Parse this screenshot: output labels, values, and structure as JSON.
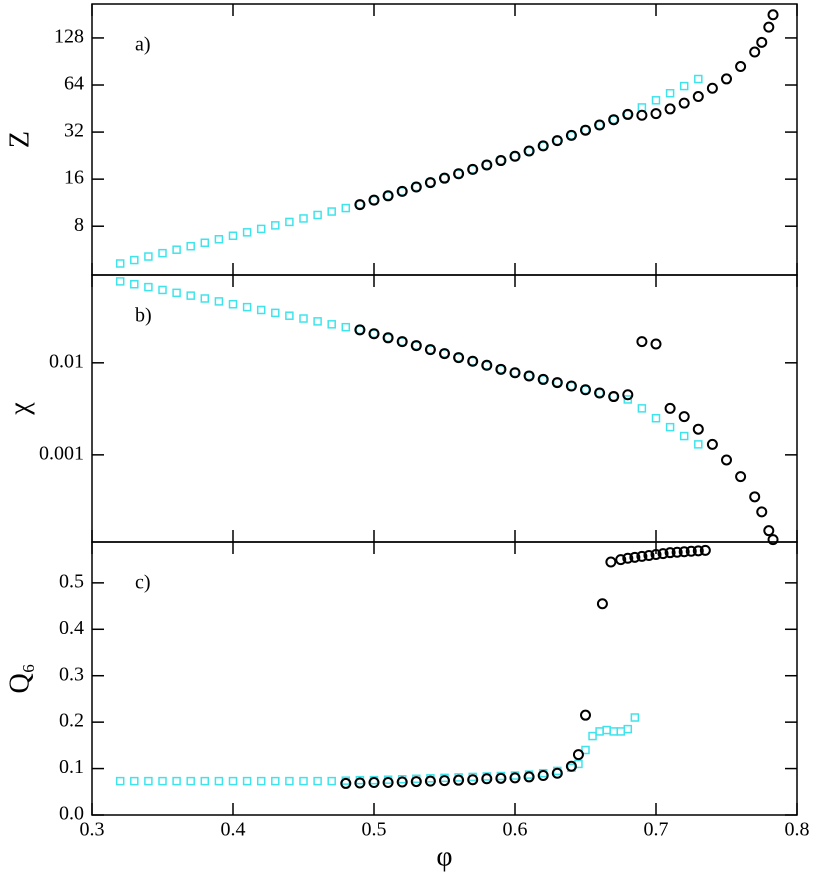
{
  "chart_data": [
    {
      "type": "scatter",
      "annotation": "a)",
      "y_label": "Z",
      "log_y": true,
      "xlim": [
        0.3,
        0.8
      ],
      "xticks": [
        0.3,
        0.4,
        0.5,
        0.6,
        0.7,
        0.8
      ],
      "ylim": [
        3.9,
        211
      ],
      "yticks": [
        8,
        16,
        32,
        64,
        128
      ],
      "series": [
        {
          "marker": "square",
          "color": "#3ee4ec",
          "x": [
            0.32,
            0.33,
            0.34,
            0.35,
            0.36,
            0.37,
            0.38,
            0.39,
            0.4,
            0.41,
            0.42,
            0.43,
            0.44,
            0.45,
            0.46,
            0.47,
            0.48,
            0.49,
            0.5,
            0.51,
            0.52,
            0.53,
            0.54,
            0.55,
            0.56,
            0.57,
            0.58,
            0.59,
            0.6,
            0.61,
            0.62,
            0.63,
            0.64,
            0.65,
            0.66,
            0.67,
            0.68,
            0.69,
            0.7,
            0.71,
            0.72,
            0.73
          ],
          "values": [
            4.62,
            4.86,
            5.12,
            5.38,
            5.66,
            5.96,
            6.27,
            6.6,
            6.95,
            7.31,
            7.69,
            8.1,
            8.52,
            8.97,
            9.44,
            9.93,
            10.45,
            11.0,
            11.74,
            12.52,
            13.36,
            14.26,
            15.21,
            16.23,
            17.32,
            18.48,
            19.72,
            21.04,
            22.4,
            24.2,
            26.1,
            28.2,
            30.5,
            32.9,
            35.5,
            38.4,
            41.5,
            46.0,
            51.1,
            56.7,
            63.0,
            69.9
          ]
        },
        {
          "marker": "circle",
          "color": "#000000",
          "x": [
            0.49,
            0.5,
            0.51,
            0.52,
            0.53,
            0.54,
            0.55,
            0.56,
            0.57,
            0.58,
            0.59,
            0.6,
            0.61,
            0.62,
            0.63,
            0.64,
            0.65,
            0.66,
            0.67,
            0.68,
            0.69,
            0.7,
            0.71,
            0.72,
            0.73,
            0.74,
            0.75,
            0.76,
            0.77,
            0.775,
            0.78,
            0.783
          ],
          "values": [
            11.0,
            11.74,
            12.52,
            13.36,
            14.26,
            15.21,
            16.23,
            17.32,
            18.48,
            19.72,
            21.04,
            22.4,
            24.2,
            26.1,
            28.2,
            30.5,
            32.9,
            35.5,
            38.4,
            41.5,
            41.0,
            42,
            45,
            49,
            54,
            61,
            70,
            84,
            104,
            120,
            150,
            180
          ]
        }
      ]
    },
    {
      "type": "scatter",
      "annotation": "b)",
      "y_label": "χ",
      "log_y": true,
      "xlim": [
        0.3,
        0.8
      ],
      "xticks": [
        0.3,
        0.4,
        0.5,
        0.6,
        0.7,
        0.8
      ],
      "ylim": [
        0.000113,
        0.09
      ],
      "yticks": [
        0.01,
        0.001
      ],
      "series": [
        {
          "marker": "square",
          "color": "#3ee4ec",
          "x": [
            0.32,
            0.33,
            0.34,
            0.35,
            0.36,
            0.37,
            0.38,
            0.39,
            0.4,
            0.41,
            0.42,
            0.43,
            0.44,
            0.45,
            0.46,
            0.47,
            0.48,
            0.49,
            0.5,
            0.51,
            0.52,
            0.53,
            0.54,
            0.55,
            0.56,
            0.57,
            0.58,
            0.59,
            0.6,
            0.61,
            0.62,
            0.63,
            0.64,
            0.65,
            0.66,
            0.67,
            0.68,
            0.69,
            0.7,
            0.71,
            0.72,
            0.73
          ],
          "values": [
            0.0767,
            0.0714,
            0.0665,
            0.0619,
            0.0576,
            0.0537,
            0.05,
            0.0465,
            0.0433,
            0.0403,
            0.0375,
            0.0349,
            0.0325,
            0.0303,
            0.0282,
            0.0262,
            0.0244,
            0.0228,
            0.0207,
            0.0187,
            0.017,
            0.0154,
            0.0139,
            0.0126,
            0.0114,
            0.0104,
            0.0094,
            0.0085,
            0.0078,
            0.0072,
            0.0066,
            0.0061,
            0.0056,
            0.0051,
            0.0047,
            0.0043,
            0.004,
            0.0032,
            0.0025,
            0.002,
            0.0016,
            0.0013
          ]
        },
        {
          "marker": "circle",
          "color": "#000000",
          "x": [
            0.49,
            0.5,
            0.51,
            0.52,
            0.53,
            0.54,
            0.55,
            0.56,
            0.57,
            0.58,
            0.59,
            0.6,
            0.61,
            0.62,
            0.63,
            0.64,
            0.65,
            0.66,
            0.67,
            0.68,
            0.69,
            0.7,
            0.71,
            0.72,
            0.73,
            0.74,
            0.75,
            0.76,
            0.77,
            0.775,
            0.78,
            0.783
          ],
          "values": [
            0.0228,
            0.0207,
            0.0187,
            0.017,
            0.0154,
            0.0139,
            0.0126,
            0.0114,
            0.0104,
            0.0094,
            0.0085,
            0.0078,
            0.0072,
            0.0066,
            0.0061,
            0.0056,
            0.0051,
            0.0047,
            0.0043,
            0.0045,
            0.017,
            0.016,
            0.0032,
            0.0026,
            0.0019,
            0.0013,
            0.00088,
            0.00058,
            0.00035,
            0.00024,
            0.00015,
            0.00012
          ]
        }
      ]
    },
    {
      "type": "scatter",
      "annotation": "c)",
      "y_label": "Q₆",
      "x_label": "φ",
      "log_y": false,
      "xlim": [
        0.3,
        0.8
      ],
      "xticks": [
        0.3,
        0.4,
        0.5,
        0.6,
        0.7,
        0.8
      ],
      "ylim": [
        0,
        0.588
      ],
      "yticks": [
        {
          "value": 0,
          "label": "0.0"
        },
        0.1,
        0.2,
        0.3,
        0.4,
        0.5
      ],
      "series": [
        {
          "marker": "square",
          "color": "#3ee4ec",
          "x": [
            0.32,
            0.33,
            0.34,
            0.35,
            0.36,
            0.37,
            0.38,
            0.39,
            0.4,
            0.41,
            0.42,
            0.43,
            0.44,
            0.45,
            0.46,
            0.47,
            0.48,
            0.49,
            0.5,
            0.51,
            0.52,
            0.53,
            0.54,
            0.55,
            0.56,
            0.57,
            0.58,
            0.59,
            0.6,
            0.61,
            0.62,
            0.63,
            0.64,
            0.645,
            0.65,
            0.655,
            0.66,
            0.665,
            0.67,
            0.675,
            0.68,
            0.685
          ],
          "values": [
            0.073,
            0.073,
            0.073,
            0.073,
            0.073,
            0.073,
            0.073,
            0.073,
            0.073,
            0.073,
            0.073,
            0.073,
            0.073,
            0.073,
            0.073,
            0.073,
            0.074,
            0.075,
            0.075,
            0.076,
            0.077,
            0.078,
            0.079,
            0.08,
            0.081,
            0.082,
            0.083,
            0.084,
            0.085,
            0.087,
            0.09,
            0.095,
            0.102,
            0.11,
            0.14,
            0.17,
            0.18,
            0.183,
            0.18,
            0.18,
            0.185,
            0.21
          ]
        },
        {
          "marker": "circle",
          "color": "#000000",
          "x": [
            0.48,
            0.49,
            0.5,
            0.51,
            0.52,
            0.53,
            0.54,
            0.55,
            0.56,
            0.57,
            0.58,
            0.59,
            0.6,
            0.61,
            0.62,
            0.63,
            0.64,
            0.645,
            0.65,
            0.662,
            0.668,
            0.675,
            0.68,
            0.685,
            0.69,
            0.695,
            0.7,
            0.705,
            0.71,
            0.715,
            0.72,
            0.725,
            0.73,
            0.735
          ],
          "values": [
            0.068,
            0.069,
            0.07,
            0.07,
            0.071,
            0.072,
            0.073,
            0.074,
            0.075,
            0.076,
            0.078,
            0.079,
            0.08,
            0.082,
            0.085,
            0.09,
            0.105,
            0.13,
            0.215,
            0.455,
            0.545,
            0.55,
            0.553,
            0.555,
            0.557,
            0.559,
            0.561,
            0.563,
            0.565,
            0.566,
            0.567,
            0.568,
            0.569,
            0.57
          ]
        }
      ]
    }
  ]
}
